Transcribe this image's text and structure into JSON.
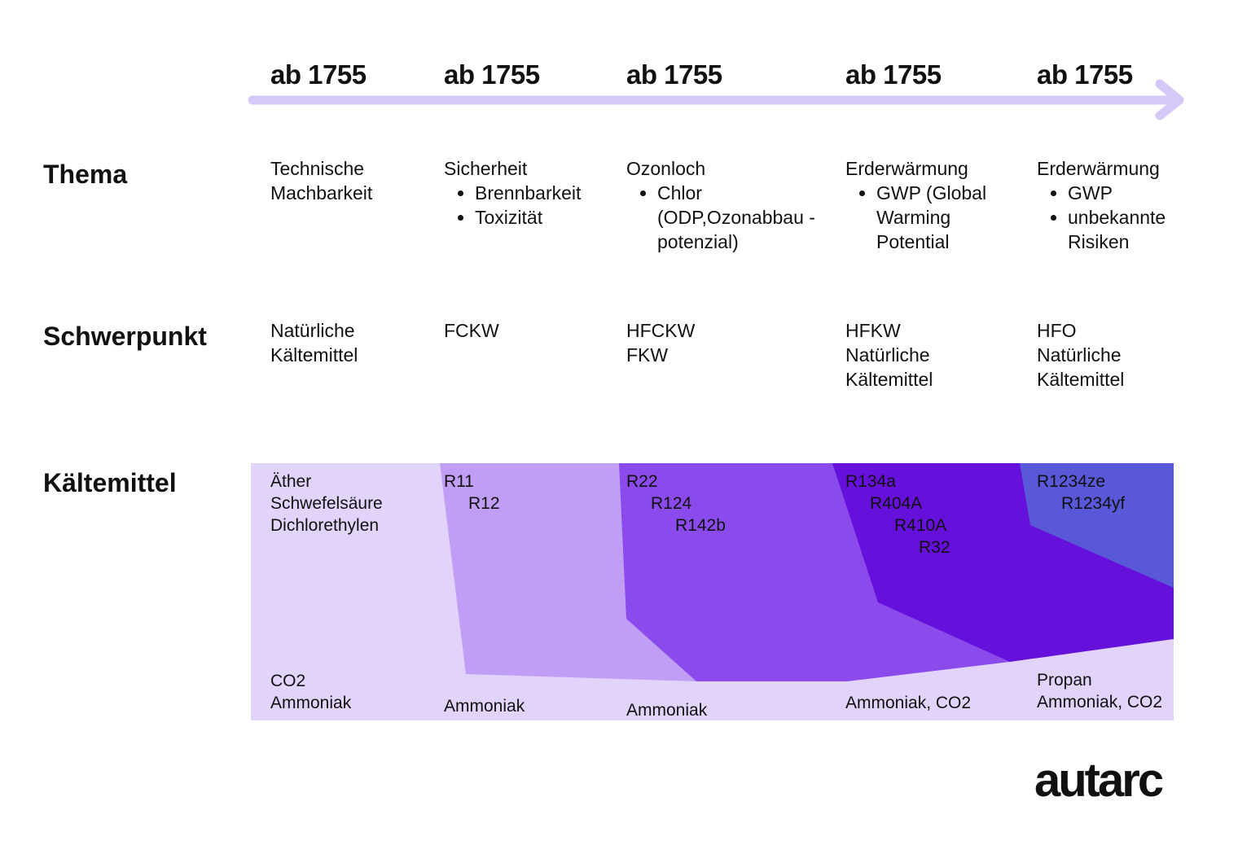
{
  "timeline": {
    "eras": [
      {
        "label": "ab 1755"
      },
      {
        "label": "ab 1755"
      },
      {
        "label": "ab 1755"
      },
      {
        "label": "ab 1755"
      },
      {
        "label": "ab 1755"
      }
    ],
    "arrow_color": "#d6c9f7"
  },
  "rows": {
    "thema": "Thema",
    "schwerpunkt": "Schwerpunkt",
    "kaeltemittel": "Kältemittel"
  },
  "thema": [
    {
      "lines": [
        "Technische",
        "Machbarkeit"
      ],
      "bullets": []
    },
    {
      "lines": [
        "Sicherheit"
      ],
      "bullets": [
        "Brennbarkeit",
        "Toxizität"
      ]
    },
    {
      "lines": [
        "Ozonloch"
      ],
      "bullets": [
        "Chlor (ODP,Ozonabbau -potenzial)"
      ]
    },
    {
      "lines": [
        "Erderwärmung"
      ],
      "bullets": [
        "GWP (Global Warming Potential"
      ]
    },
    {
      "lines": [
        "Erderwärmung"
      ],
      "bullets": [
        "GWP",
        "unbekannte Risiken"
      ]
    }
  ],
  "schwerpunkt": [
    [
      "Natürliche",
      "Kältemittel"
    ],
    [
      "FCKW"
    ],
    [
      "HFCKW",
      "FKW"
    ],
    [
      "HFKW",
      "Natürliche",
      "Kältemittel"
    ],
    [
      "HFO",
      "Natürliche",
      "Kältemittel"
    ]
  ],
  "kaeltemittel_top": [
    [
      "Äther",
      "Schwefelsäure",
      "Dichlorethylen"
    ],
    [
      "R11",
      "R12"
    ],
    [
      "R22",
      "R124",
      "R142b"
    ],
    [
      "R134a",
      "R404A",
      "R410A",
      "R32"
    ],
    [
      "R1234ze",
      "R1234yf"
    ]
  ],
  "kaeltemittel_bottom": [
    [
      "CO2",
      "Ammoniak"
    ],
    [
      "Ammoniak"
    ],
    [
      "Ammoniak"
    ],
    [
      "Ammoniak, CO2"
    ],
    [
      "Propan",
      "Ammoniak, CO2"
    ]
  ],
  "colors": {
    "band_light": "#e2d3fb",
    "band_fckw": "#c19ef5",
    "band_hfckw": "#8b4aeb",
    "band_hfkw": "#6610dc",
    "band_hfo": "#5858d8"
  },
  "brand": {
    "logo_text": "autarc"
  }
}
